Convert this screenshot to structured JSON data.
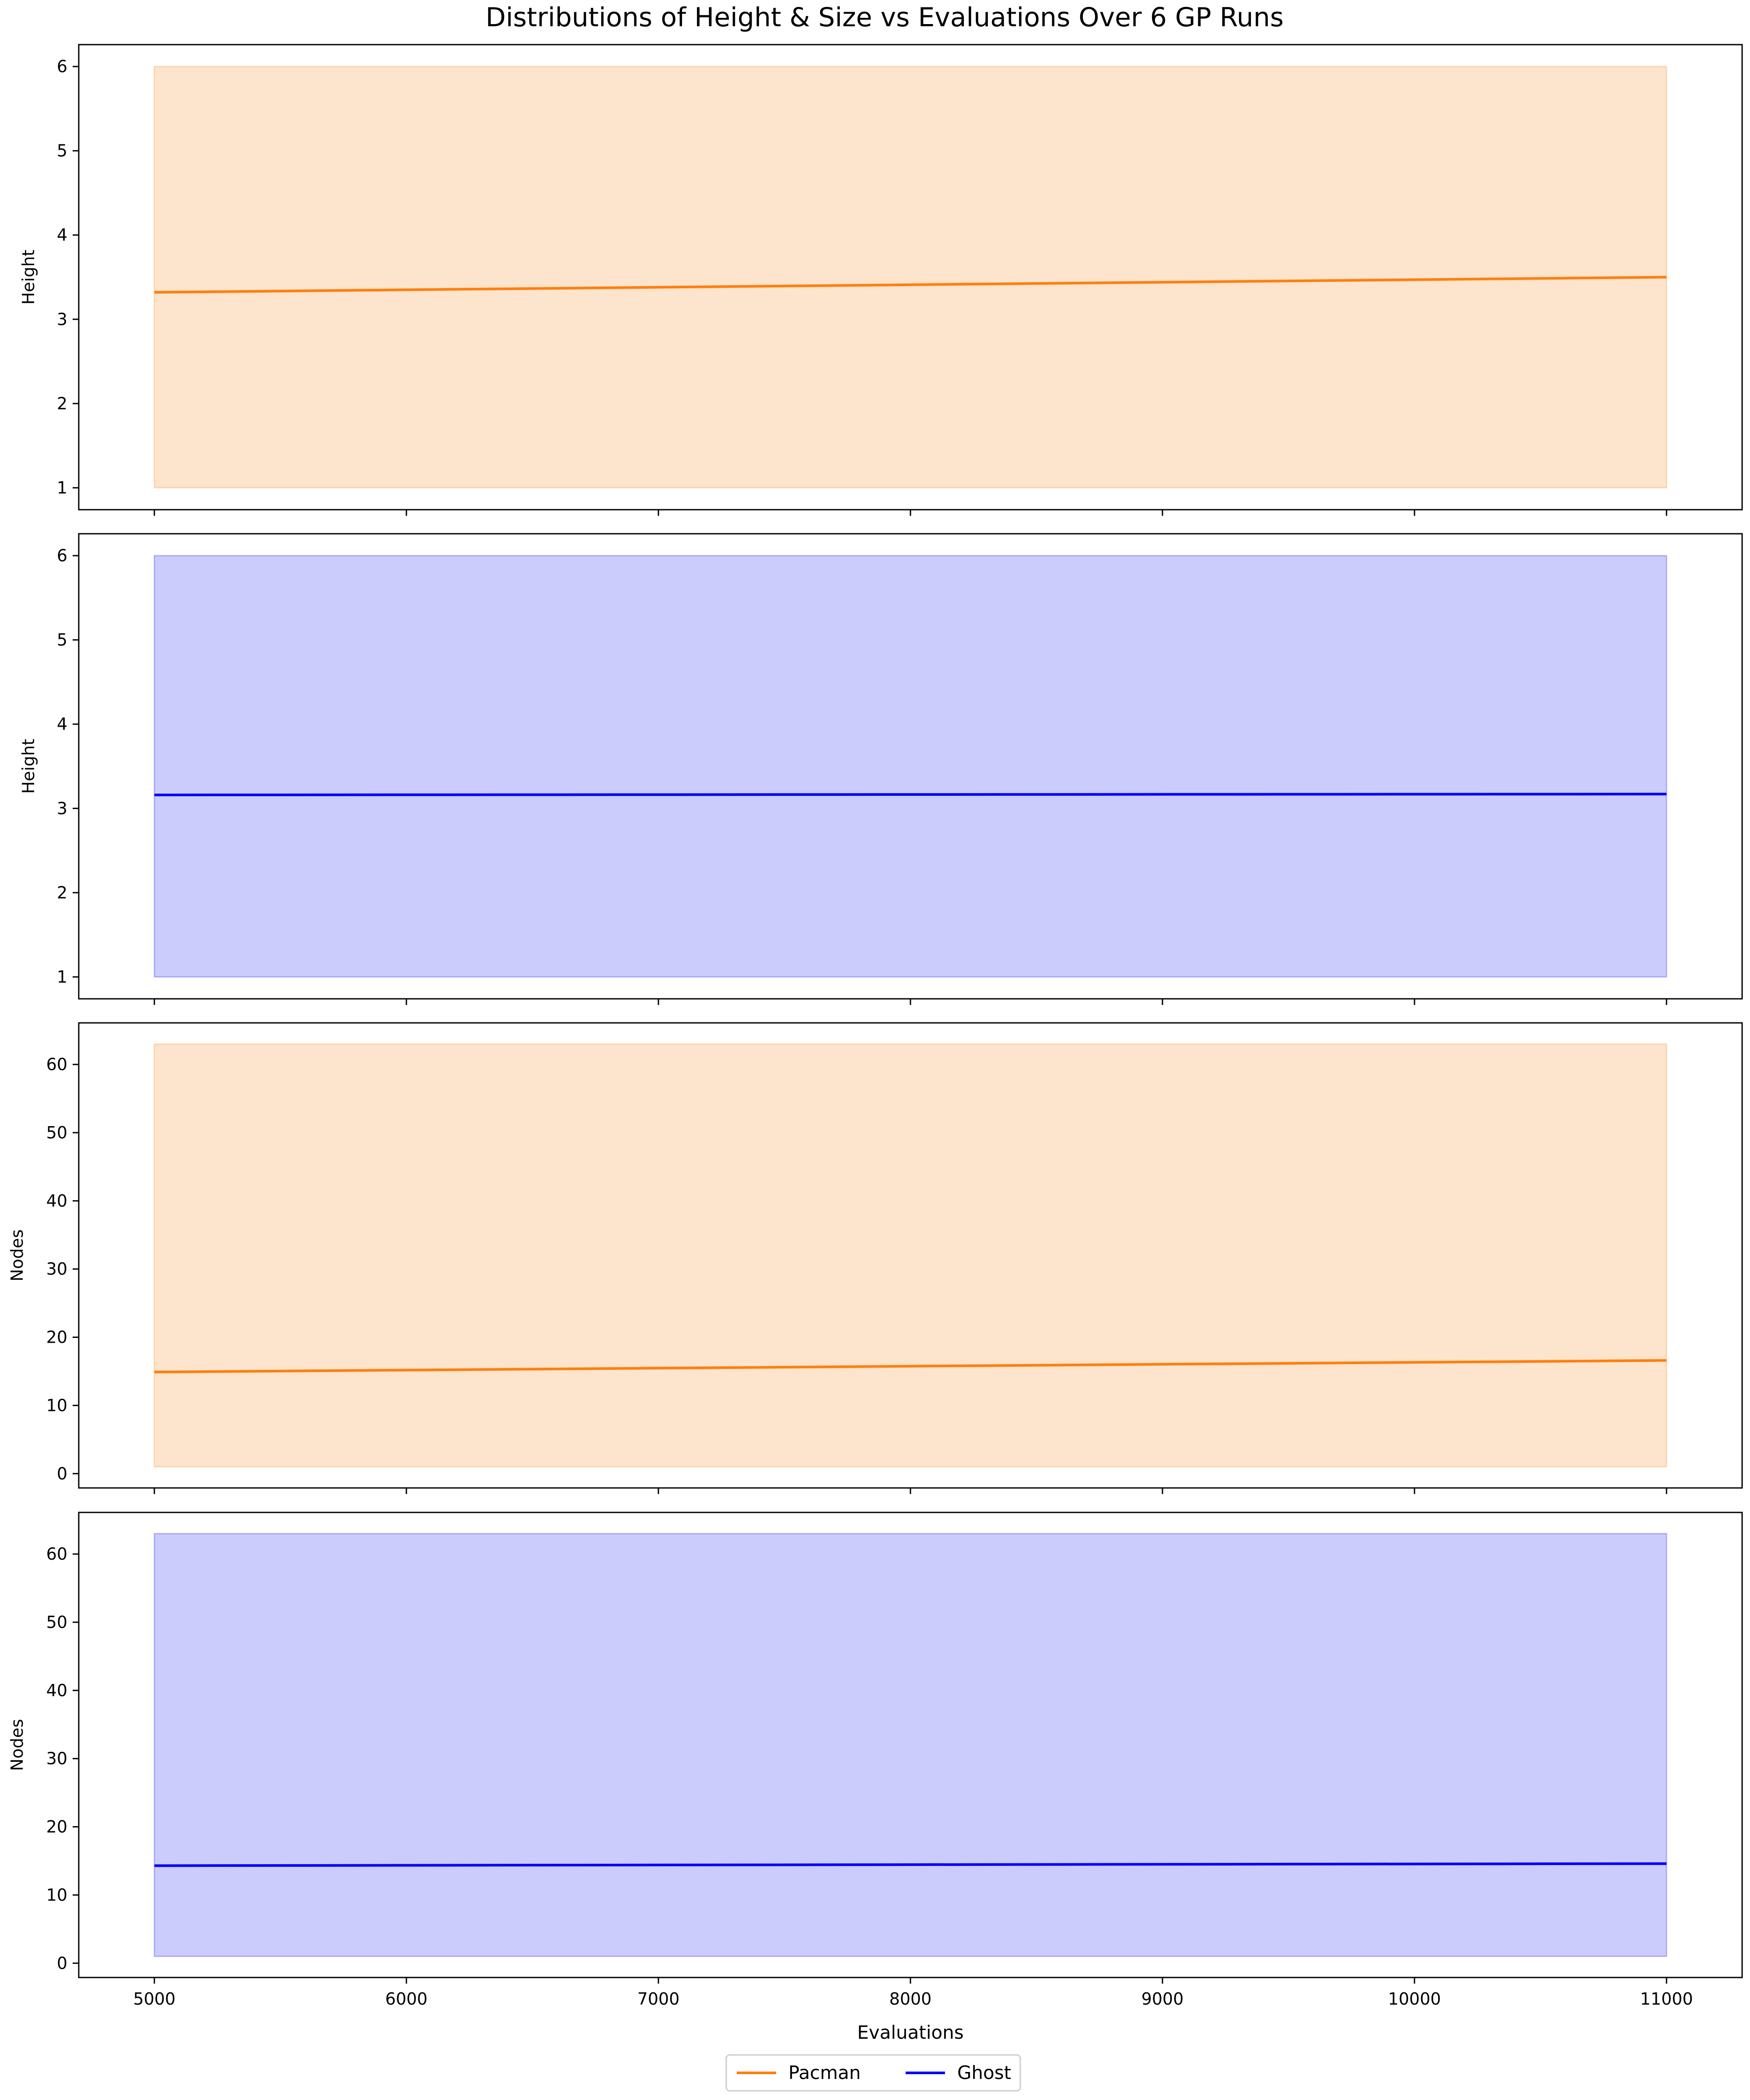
{
  "figure_title": "Distributions of Height & Size vs Evaluations Over 6 GP Runs",
  "xlabel": "Evaluations",
  "colors": {
    "pacman_line": "#ff7f0e",
    "pacman_fill": "#fde4cc",
    "ghost_line": "#0000ff",
    "ghost_fill": "#ccccfc"
  },
  "legend": {
    "location": "bottom-center",
    "entries": [
      {
        "label": "Pacman",
        "color": "#ff7f0e"
      },
      {
        "label": "Ghost",
        "color": "#0000ff"
      }
    ]
  },
  "chart_data": [
    {
      "type": "area",
      "ylabel": "Height",
      "xlim": [
        4700,
        11300
      ],
      "ylim": [
        0.74,
        6.26
      ],
      "yticks": [
        1,
        2,
        3,
        4,
        5,
        6
      ],
      "xticks": [
        5000,
        6000,
        7000,
        8000,
        9000,
        10000,
        11000
      ],
      "grid": false,
      "series": [
        {
          "name": "Pacman",
          "color": "#ff7f0e",
          "fill": "#fde4cc",
          "x": [
            5000,
            11000
          ],
          "mean": [
            3.32,
            3.5
          ],
          "lower": [
            1,
            1
          ],
          "upper": [
            6,
            6
          ]
        }
      ]
    },
    {
      "type": "area",
      "ylabel": "Height",
      "xlim": [
        4700,
        11300
      ],
      "ylim": [
        0.74,
        6.26
      ],
      "yticks": [
        1,
        2,
        3,
        4,
        5,
        6
      ],
      "xticks": [
        5000,
        6000,
        7000,
        8000,
        9000,
        10000,
        11000
      ],
      "grid": false,
      "series": [
        {
          "name": "Ghost",
          "color": "#0000ff",
          "fill": "#ccccfc",
          "x": [
            5000,
            11000
          ],
          "mean": [
            3.16,
            3.17
          ],
          "lower": [
            1,
            1
          ],
          "upper": [
            6,
            6
          ]
        }
      ]
    },
    {
      "type": "area",
      "ylabel": "Nodes",
      "xlim": [
        4700,
        11300
      ],
      "ylim": [
        -2.1,
        66.1
      ],
      "yticks": [
        0,
        10,
        20,
        30,
        40,
        50,
        60
      ],
      "xticks": [
        5000,
        6000,
        7000,
        8000,
        9000,
        10000,
        11000
      ],
      "grid": false,
      "series": [
        {
          "name": "Pacman",
          "color": "#ff7f0e",
          "fill": "#fde4cc",
          "x": [
            5000,
            11000
          ],
          "mean": [
            14.9,
            16.6
          ],
          "lower": [
            1,
            1
          ],
          "upper": [
            63,
            63
          ]
        }
      ]
    },
    {
      "type": "area",
      "ylabel": "Nodes",
      "xlim": [
        4700,
        11300
      ],
      "ylim": [
        -2.1,
        66.1
      ],
      "yticks": [
        0,
        10,
        20,
        30,
        40,
        50,
        60
      ],
      "xticks": [
        5000,
        6000,
        7000,
        8000,
        9000,
        10000,
        11000
      ],
      "xticklabels_visible": true,
      "grid": false,
      "series": [
        {
          "name": "Ghost",
          "color": "#0000ff",
          "fill": "#ccccfc",
          "x": [
            5000,
            11000
          ],
          "mean": [
            14.3,
            14.6
          ],
          "lower": [
            1,
            1
          ],
          "upper": [
            63,
            63
          ]
        }
      ]
    }
  ]
}
